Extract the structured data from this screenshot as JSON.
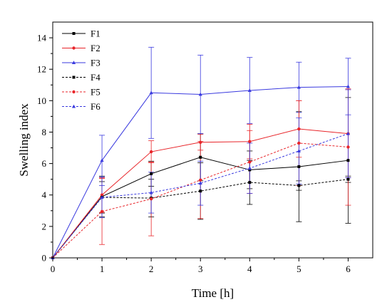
{
  "chart_data": {
    "type": "line",
    "title": "",
    "xlabel": "Time [h]",
    "ylabel": "Swelling index",
    "xlim": [
      0,
      6.5
    ],
    "ylim": [
      0,
      15
    ],
    "xticks": [
      0,
      1,
      2,
      3,
      4,
      5,
      6
    ],
    "yticks": [
      0,
      2,
      4,
      6,
      8,
      10,
      12,
      14
    ],
    "legend_position": "top-left",
    "x": [
      0,
      1,
      2,
      3,
      4,
      5,
      6
    ],
    "series": [
      {
        "name": "F1",
        "color": "#000000",
        "line_style": "solid",
        "marker": "square",
        "values": [
          0,
          3.9,
          5.35,
          6.4,
          5.6,
          5.8,
          6.2
        ],
        "errors": [
          0,
          1.3,
          0.8,
          1.5,
          1.2,
          3.5,
          4.0
        ]
      },
      {
        "name": "F2",
        "color": "#e8252a",
        "line_style": "solid",
        "marker": "circle",
        "values": [
          0,
          4.0,
          6.75,
          7.35,
          7.4,
          8.2,
          7.9
        ],
        "errors": [
          0,
          1.1,
          0.7,
          0.5,
          1.1,
          1.8,
          2.8
        ]
      },
      {
        "name": "F3",
        "color": "#3a3adf",
        "line_style": "solid",
        "marker": "triangle",
        "values": [
          0,
          6.2,
          10.5,
          10.4,
          10.65,
          10.85,
          10.9
        ],
        "errors": [
          0,
          1.6,
          2.9,
          2.5,
          2.1,
          1.6,
          1.8
        ]
      },
      {
        "name": "F4",
        "color": "#000000",
        "line_style": "dashed",
        "marker": "square",
        "values": [
          0,
          3.85,
          3.8,
          4.25,
          4.8,
          4.6,
          5.0
        ],
        "errors": [
          0,
          1.0,
          1.2,
          1.8,
          1.4,
          0.3,
          0.2
        ]
      },
      {
        "name": "F5",
        "color": "#e8252a",
        "line_style": "dashed",
        "marker": "circle",
        "values": [
          0,
          2.95,
          3.75,
          4.95,
          6.1,
          7.3,
          7.05
        ],
        "errors": [
          0,
          2.1,
          2.35,
          2.45,
          2.0,
          2.7,
          3.7
        ]
      },
      {
        "name": "F6",
        "color": "#3a3adf",
        "line_style": "dashed",
        "marker": "triangle",
        "values": [
          0,
          3.85,
          4.15,
          4.75,
          5.7,
          6.8,
          7.9
        ],
        "errors": [
          0,
          1.3,
          1.3,
          1.4,
          1.6,
          2.1,
          2.8
        ]
      }
    ]
  }
}
